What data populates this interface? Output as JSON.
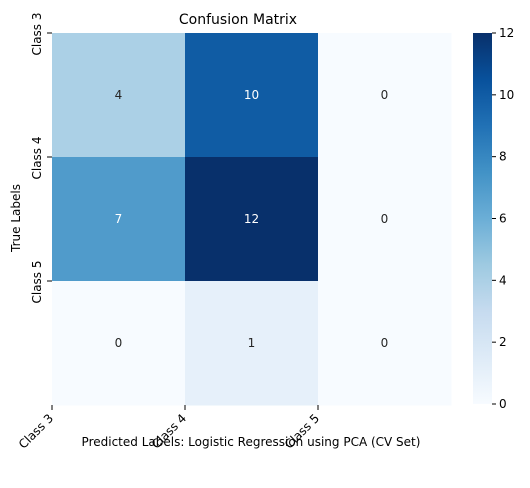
{
  "chart_data": {
    "type": "heatmap",
    "title": "Confusion Matrix",
    "xlabel": "Predicted Labels: Logistic Regression using PCA (CV Set)",
    "ylabel": "True Labels",
    "x_tick_labels": [
      "Class 3",
      "Class 4",
      "Class 5"
    ],
    "y_tick_labels": [
      "Class 3",
      "Class 4",
      "Class 5"
    ],
    "matrix": [
      [
        4,
        10,
        0
      ],
      [
        7,
        12,
        0
      ],
      [
        0,
        1,
        0
      ]
    ],
    "colormap": "Blues",
    "vmin": 0,
    "vmax": 12,
    "colorbar_ticks": [
      "0",
      "2",
      "4",
      "6",
      "8",
      "10",
      "12"
    ],
    "colorbar_values": [
      0,
      2,
      4,
      6,
      8,
      10,
      12
    ]
  }
}
